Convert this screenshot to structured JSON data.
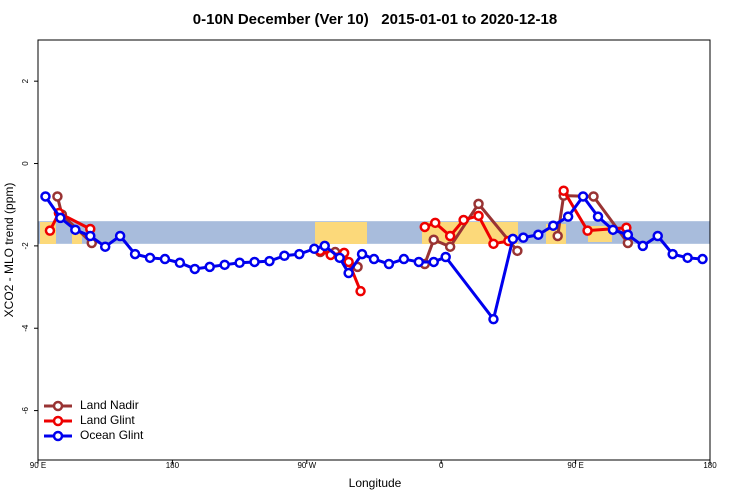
{
  "chart_data": {
    "type": "line",
    "title": "0-10N December (Ver 10)   2015-01-01 to 2020-12-18",
    "x_label": "Longitude",
    "y_label": "XCO2 - MLO trend (ppm)",
    "xlim": [
      90,
      540
    ],
    "ylim": [
      -7.2,
      3.0
    ],
    "xticks": [
      {
        "value": 90,
        "label": "90 E"
      },
      180,
      {
        "value": 270,
        "label": "90 W"
      },
      {
        "value": 360,
        "label": "0"
      },
      {
        "value": 450,
        "label": "90 E"
      },
      {
        "value": 540,
        "label": "180"
      }
    ],
    "yticks": [
      -6,
      -4,
      -2,
      0,
      2
    ],
    "band": [
      -1.95,
      -1.4
    ],
    "band_color": "#a8bcdc",
    "legend_position": "bottom-left",
    "series": [
      {
        "name": "Land Nadir",
        "color": "#993333",
        "x": [
          103,
          106,
          126,
          null,
          279,
          289,
          304,
          null,
          349,
          355,
          366,
          385,
          411,
          null,
          438,
          442,
          462,
          485
        ],
        "values": [
          -0.8,
          -1.24,
          -1.93,
          null,
          -2.15,
          -2.15,
          -2.51,
          null,
          -2.44,
          -1.85,
          -2.02,
          -0.98,
          -2.12,
          null,
          -1.76,
          -0.78,
          -0.8,
          -1.93
        ]
      },
      {
        "name": "Land Glint",
        "color": "#ee0000",
        "x": [
          98,
          104,
          125,
          null,
          279,
          286,
          295,
          298,
          306,
          null,
          349,
          356,
          366,
          375,
          385,
          395,
          405,
          null,
          442,
          458,
          484
        ],
        "values": [
          -1.63,
          -1.2,
          -1.59,
          null,
          -2.12,
          -2.22,
          -2.17,
          -2.39,
          -3.1,
          null,
          -1.54,
          -1.44,
          -1.76,
          -1.37,
          -1.27,
          -1.95,
          -1.88,
          null,
          -0.66,
          -1.63,
          -1.56
        ]
      },
      {
        "name": "Ocean Glint",
        "color": "#0000ee",
        "x": [
          95,
          105,
          115,
          125,
          135,
          145,
          155,
          165,
          175,
          185,
          195,
          205,
          215,
          225,
          235,
          245,
          255,
          265,
          275,
          282,
          292,
          298,
          307,
          315,
          325,
          335,
          345,
          355,
          363,
          395,
          408,
          415,
          425,
          435,
          445,
          455,
          465,
          475,
          485,
          495,
          505,
          515,
          525,
          535
        ],
        "values": [
          -0.8,
          -1.32,
          -1.61,
          -1.76,
          -2.02,
          -1.76,
          -2.2,
          -2.29,
          -2.32,
          -2.41,
          -2.56,
          -2.51,
          -2.46,
          -2.41,
          -2.39,
          -2.37,
          -2.24,
          -2.2,
          -2.07,
          -2.0,
          -2.29,
          -2.66,
          -2.2,
          -2.32,
          -2.44,
          -2.32,
          -2.39,
          -2.39,
          -2.27,
          -3.78,
          -1.83,
          -1.8,
          -1.73,
          -1.51,
          -1.29,
          -0.8,
          -1.29,
          -1.61,
          -1.73,
          -2.0,
          -1.76,
          -2.2,
          -2.29,
          -2.32
        ]
      }
    ]
  }
}
